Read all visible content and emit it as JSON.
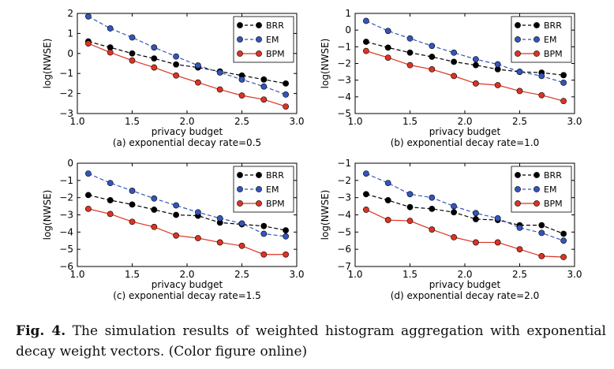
{
  "figure": {
    "caption_label": "Fig. 4.",
    "caption_text": "The simulation results of weighted histogram aggregation with exponential decay weight vectors. (Color figure online)"
  },
  "colors": {
    "BRR": "#000000",
    "EM": "#3355bb",
    "BPM": "#dd3322"
  },
  "chart_data": [
    {
      "type": "line",
      "panel": "(a)",
      "subtitle": "(a) exponential decay rate=0.5",
      "xlabel": "privacy budget",
      "ylabel": "log(NWSE)",
      "xlim": [
        1.0,
        3.0
      ],
      "ylim": [
        -3,
        2
      ],
      "xticks": [
        "1.0",
        "1.5",
        "2.0",
        "2.5",
        "3.0"
      ],
      "yticks": [
        "2",
        "1",
        "0",
        "−1",
        "−2",
        "−3"
      ],
      "legend_position": "top-right",
      "x": [
        1.1,
        1.3,
        1.5,
        1.7,
        1.9,
        2.1,
        2.3,
        2.5,
        2.7,
        2.9
      ],
      "series": [
        {
          "name": "BRR",
          "style": "dashed",
          "values": [
            0.6,
            0.3,
            0.0,
            -0.25,
            -0.55,
            -0.7,
            -0.9,
            -1.1,
            -1.3,
            -1.5
          ]
        },
        {
          "name": "EM",
          "style": "dashed",
          "values": [
            1.85,
            1.25,
            0.8,
            0.3,
            -0.15,
            -0.6,
            -0.95,
            -1.3,
            -1.65,
            -2.05
          ]
        },
        {
          "name": "BPM",
          "style": "solid",
          "values": [
            0.5,
            0.05,
            -0.35,
            -0.7,
            -1.1,
            -1.45,
            -1.8,
            -2.1,
            -2.3,
            -2.65
          ]
        }
      ]
    },
    {
      "type": "line",
      "panel": "(b)",
      "subtitle": "(b) exponential decay rate=1.0",
      "xlabel": "privacy budget",
      "ylabel": "log(NWSE)",
      "xlim": [
        1.0,
        3.0
      ],
      "ylim": [
        -5,
        1
      ],
      "xticks": [
        "1.0",
        "1.5",
        "2.0",
        "2.5",
        "3.0"
      ],
      "yticks": [
        "1",
        "0",
        "−1",
        "−2",
        "−3",
        "−4",
        "−5"
      ],
      "legend_position": "top-right",
      "x": [
        1.1,
        1.3,
        1.5,
        1.7,
        1.9,
        2.1,
        2.3,
        2.5,
        2.7,
        2.9
      ],
      "series": [
        {
          "name": "BRR",
          "style": "dashed",
          "values": [
            -0.7,
            -1.05,
            -1.35,
            -1.6,
            -1.9,
            -2.1,
            -2.35,
            -2.5,
            -2.55,
            -2.7
          ]
        },
        {
          "name": "EM",
          "style": "dashed",
          "values": [
            0.55,
            -0.05,
            -0.5,
            -0.95,
            -1.35,
            -1.75,
            -2.05,
            -2.5,
            -2.75,
            -3.15
          ]
        },
        {
          "name": "BPM",
          "style": "solid",
          "values": [
            -1.25,
            -1.65,
            -2.1,
            -2.35,
            -2.75,
            -3.2,
            -3.3,
            -3.65,
            -3.9,
            -4.25
          ]
        }
      ]
    },
    {
      "type": "line",
      "panel": "(c)",
      "subtitle": "(c) exponential decay rate=1.5",
      "xlabel": "privacy budget",
      "ylabel": "log(NWSE)",
      "xlim": [
        1.0,
        3.0
      ],
      "ylim": [
        -6,
        0
      ],
      "xticks": [
        "1.0",
        "1.5",
        "2.0",
        "2.5",
        "3.0"
      ],
      "yticks": [
        "0",
        "−1",
        "−2",
        "−3",
        "−4",
        "−5",
        "−6"
      ],
      "legend_position": "top-right",
      "x": [
        1.1,
        1.3,
        1.5,
        1.7,
        1.9,
        2.1,
        2.3,
        2.5,
        2.7,
        2.9
      ],
      "series": [
        {
          "name": "BRR",
          "style": "dashed",
          "values": [
            -1.85,
            -2.15,
            -2.4,
            -2.7,
            -3.0,
            -3.05,
            -3.45,
            -3.55,
            -3.65,
            -3.9
          ]
        },
        {
          "name": "EM",
          "style": "dashed",
          "values": [
            -0.6,
            -1.15,
            -1.6,
            -2.05,
            -2.45,
            -2.85,
            -3.2,
            -3.5,
            -4.1,
            -4.25
          ]
        },
        {
          "name": "BPM",
          "style": "solid",
          "values": [
            -2.65,
            -2.95,
            -3.4,
            -3.7,
            -4.2,
            -4.35,
            -4.6,
            -4.8,
            -5.3,
            -5.3
          ]
        }
      ]
    },
    {
      "type": "line",
      "panel": "(d)",
      "subtitle": "(d) exponential decay rate=2.0",
      "xlabel": "privacy budget",
      "ylabel": "log(NWSE)",
      "xlim": [
        1.0,
        3.0
      ],
      "ylim": [
        -7,
        -1
      ],
      "xticks": [
        "1.0",
        "1.5",
        "2.0",
        "2.5",
        "3.0"
      ],
      "yticks": [
        "−1",
        "−2",
        "−3",
        "−4",
        "−5",
        "−6",
        "−7"
      ],
      "legend_position": "top-right",
      "x": [
        1.1,
        1.3,
        1.5,
        1.7,
        1.9,
        2.1,
        2.3,
        2.5,
        2.7,
        2.9
      ],
      "series": [
        {
          "name": "BRR",
          "style": "dashed",
          "values": [
            -2.8,
            -3.15,
            -3.55,
            -3.65,
            -3.85,
            -4.25,
            -4.3,
            -4.6,
            -4.6,
            -5.1
          ]
        },
        {
          "name": "EM",
          "style": "dashed",
          "values": [
            -1.6,
            -2.15,
            -2.8,
            -3.0,
            -3.5,
            -3.9,
            -4.2,
            -4.75,
            -5.05,
            -5.5
          ]
        },
        {
          "name": "BPM",
          "style": "solid",
          "values": [
            -3.7,
            -4.3,
            -4.35,
            -4.85,
            -5.3,
            -5.6,
            -5.6,
            -6.0,
            -6.4,
            -6.45
          ]
        }
      ]
    }
  ]
}
